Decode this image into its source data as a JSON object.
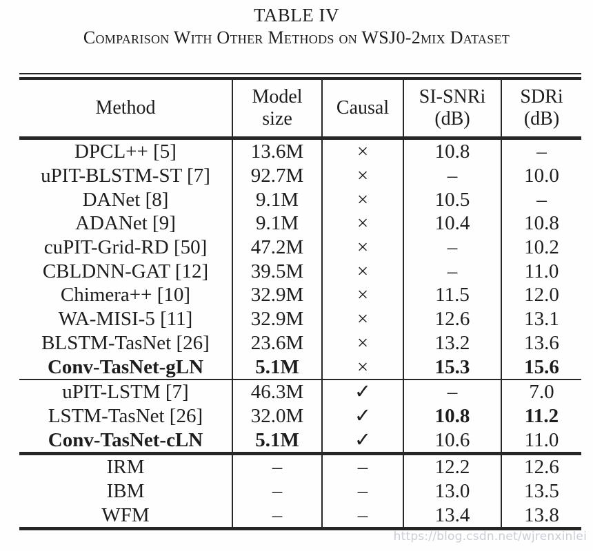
{
  "caption": {
    "title": "TABLE IV",
    "subtitle": "Comparison With Other Methods on WSJ0-2mix Dataset"
  },
  "table": {
    "headers": [
      {
        "id": "method",
        "label": "Method"
      },
      {
        "id": "model_size",
        "label": "Model\nsize"
      },
      {
        "id": "causal",
        "label": "Causal"
      },
      {
        "id": "si_snri",
        "label": "SI-SNRi\n(dB)"
      },
      {
        "id": "sdri",
        "label": "SDRi\n(dB)"
      }
    ],
    "sections": [
      {
        "name": "non-causal-methods",
        "rows": [
          {
            "method": "DPCL++ [5]",
            "model_size": "13.6M",
            "causal": "×",
            "si_snri": "10.8",
            "sdri": "–",
            "bold": []
          },
          {
            "method": "uPIT-BLSTM-ST [7]",
            "model_size": "92.7M",
            "causal": "×",
            "si_snri": "–",
            "sdri": "10.0",
            "bold": []
          },
          {
            "method": "DANet [8]",
            "model_size": "9.1M",
            "causal": "×",
            "si_snri": "10.5",
            "sdri": "–",
            "bold": []
          },
          {
            "method": "ADANet [9]",
            "model_size": "9.1M",
            "causal": "×",
            "si_snri": "10.4",
            "sdri": "10.8",
            "bold": []
          },
          {
            "method": "cuPIT-Grid-RD [50]",
            "model_size": "47.2M",
            "causal": "×",
            "si_snri": "–",
            "sdri": "10.2",
            "bold": []
          },
          {
            "method": "CBLDNN-GAT [12]",
            "model_size": "39.5M",
            "causal": "×",
            "si_snri": "–",
            "sdri": "11.0",
            "bold": []
          },
          {
            "method": "Chimera++ [10]",
            "model_size": "32.9M",
            "causal": "×",
            "si_snri": "11.5",
            "sdri": "12.0",
            "bold": []
          },
          {
            "method": "WA-MISI-5 [11]",
            "model_size": "32.9M",
            "causal": "×",
            "si_snri": "12.6",
            "sdri": "13.1",
            "bold": []
          },
          {
            "method": "BLSTM-TasNet [26]",
            "model_size": "23.6M",
            "causal": "×",
            "si_snri": "13.2",
            "sdri": "13.6",
            "bold": []
          },
          {
            "method": "Conv-TasNet-gLN",
            "model_size": "5.1M",
            "causal": "×",
            "si_snri": "15.3",
            "sdri": "15.6",
            "bold": [
              "method",
              "model_size",
              "si_snri",
              "sdri"
            ]
          }
        ]
      },
      {
        "name": "causal-methods",
        "rows": [
          {
            "method": "uPIT-LSTM [7]",
            "model_size": "46.3M",
            "causal": "✓",
            "si_snri": "–",
            "sdri": "7.0",
            "bold": []
          },
          {
            "method": "LSTM-TasNet [26]",
            "model_size": "32.0M",
            "causal": "✓",
            "si_snri": "10.8",
            "sdri": "11.2",
            "bold": [
              "si_snri",
              "sdri"
            ]
          },
          {
            "method": "Conv-TasNet-cLN",
            "model_size": "5.1M",
            "causal": "✓",
            "si_snri": "10.6",
            "sdri": "11.0",
            "bold": [
              "method",
              "model_size"
            ]
          }
        ]
      },
      {
        "name": "ideal-masks",
        "rows": [
          {
            "method": "IRM",
            "model_size": "–",
            "causal": "–",
            "si_snri": "12.2",
            "sdri": "12.6",
            "bold": []
          },
          {
            "method": "IBM",
            "model_size": "–",
            "causal": "–",
            "si_snri": "13.0",
            "sdri": "13.5",
            "bold": []
          },
          {
            "method": "WFM",
            "model_size": "–",
            "causal": "–",
            "si_snri": "13.4",
            "sdri": "13.8",
            "bold": []
          }
        ]
      }
    ]
  },
  "watermark": "https://blog.csdn.net/wjrenxinlei"
}
